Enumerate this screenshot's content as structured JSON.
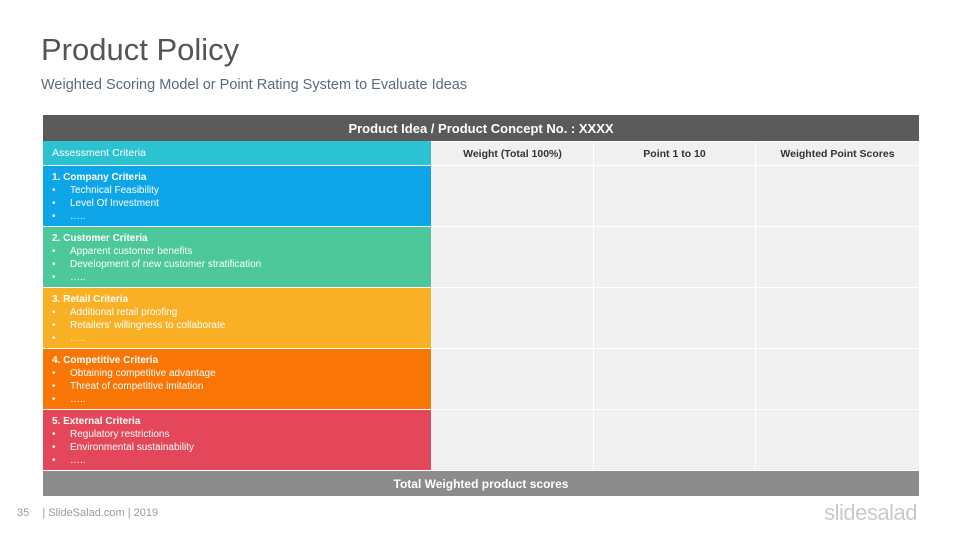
{
  "page": {
    "title": "Product Policy",
    "subtitle": "Weighted Scoring Model or Point Rating System to Evaluate Ideas"
  },
  "table": {
    "header": "Product Idea / Product Concept No. : XXXX",
    "columns": {
      "criteria": "Assessment Criteria",
      "weight": "Weight (Total 100%)",
      "points": "Point 1 to 10",
      "scores": "Weighted Point Scores"
    },
    "rows": [
      {
        "title": "1. Company Criteria",
        "color": "#0ea5e9",
        "items": [
          "Technical Feasibility",
          "Level Of Investment",
          "….."
        ]
      },
      {
        "title": "2. Customer Criteria",
        "color": "#4cc89b",
        "items": [
          "Apparent customer benefits",
          "Development of new customer stratification",
          "….."
        ]
      },
      {
        "title": "3. Retail Criteria",
        "color": "#fab024",
        "items": [
          "Additional retail proofing",
          "Retailers' willingness to collaborate",
          "….."
        ]
      },
      {
        "title": "4. Competitive Criteria",
        "color": "#f97606",
        "items": [
          "Obtaining competitive advantage",
          "Threat of competitive imitation",
          "….."
        ]
      },
      {
        "title": "5. External Criteria",
        "color": "#e4475a",
        "items": [
          "Regulatory restrictions",
          "Environmental sustainability",
          "….."
        ]
      }
    ],
    "bullet": "•",
    "total": "Total Weighted product scores"
  },
  "footer": {
    "page_number": "35",
    "source": "| SlideSalad.com | 2019",
    "brand": "slidesalad"
  }
}
